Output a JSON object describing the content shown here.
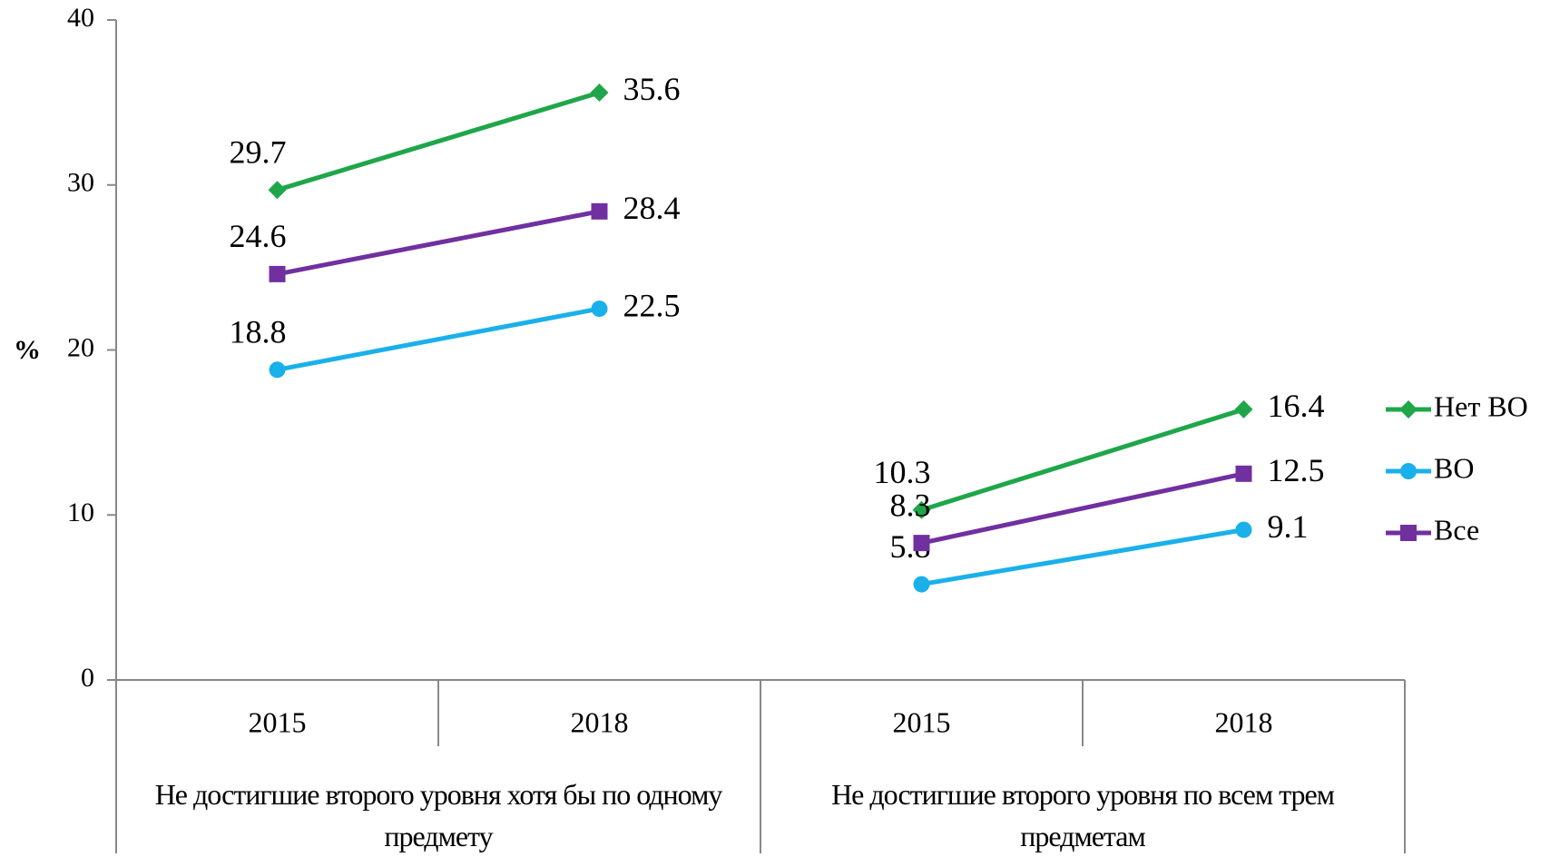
{
  "chart_data": {
    "type": "line",
    "y_label": "%",
    "groups": [
      {
        "label": "Не достигшие второго уровня хотя бы по одному предмету",
        "categories": [
          "2015",
          "2018"
        ]
      },
      {
        "label": "Не достигшие второго уровня по всем трем предметам",
        "categories": [
          "2015",
          "2018"
        ]
      }
    ],
    "series": [
      {
        "name": "Нет ВО",
        "color": "#1fa64a",
        "marker": "diamond",
        "values": [
          29.7,
          35.6,
          10.3,
          16.4
        ]
      },
      {
        "name": "ВО",
        "color": "#1ab0ea",
        "marker": "circle",
        "values": [
          18.8,
          22.5,
          5.8,
          9.1
        ]
      },
      {
        "name": "Все",
        "color": "#7030a0",
        "marker": "square",
        "values": [
          24.6,
          28.4,
          8.3,
          12.5
        ]
      }
    ],
    "ylim": [
      0,
      40
    ],
    "yticks": [
      0,
      10,
      20,
      30,
      40
    ],
    "grid": false,
    "legend": "right"
  }
}
